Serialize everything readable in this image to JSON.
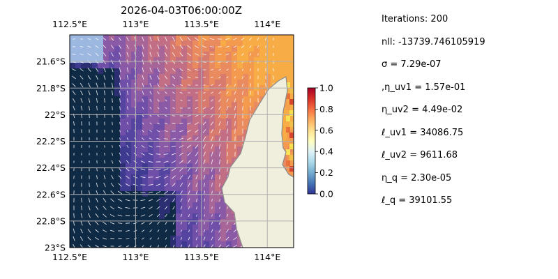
{
  "chart_data": {
    "type": "heatmap",
    "title": "2026-04-03T06:00:00Z",
    "x_ticks": [
      "112.5°E",
      "113°E",
      "113.5°E",
      "114°E"
    ],
    "x_tick_values": [
      112.5,
      113.0,
      113.5,
      114.0
    ],
    "y_ticks": [
      "21.6°S",
      "21.8°S",
      "22°S",
      "22.2°S",
      "22.4°S",
      "22.6°S",
      "22.8°S",
      "23°S"
    ],
    "y_tick_values": [
      -21.6,
      -21.8,
      -22.0,
      -22.2,
      -22.4,
      -22.6,
      -22.8,
      -23.0
    ],
    "xlim": [
      112.5,
      114.2
    ],
    "ylim": [
      -23.0,
      -21.4
    ],
    "grid": true,
    "colorbar": {
      "range": [
        0.0,
        1.0
      ],
      "ticks": [
        "0.0",
        "0.2",
        "0.4",
        "0.6",
        "0.8",
        "1.0"
      ],
      "tick_values": [
        0.0,
        0.2,
        0.4,
        0.6,
        0.8,
        1.0
      ],
      "colormap": "RdYlBu_r"
    },
    "colors": {
      "land": "#f0eedc",
      "no_data": "#9db8e0",
      "coast": "#8c8c8c",
      "grid": "#b0b0b0",
      "arrow": "#ffffff"
    }
  },
  "params": [
    "Iterations: 200",
    "nll: -13739.746105919",
    "σ = 7.29e-07",
    ",η_uv1 = 1.57e-01",
    "η_uv2 = 4.49e-02",
    "ℓ_uv1 = 34086.75",
    "ℓ_uv2 = 9611.68",
    "η_q = 2.30e-05",
    "ℓ_q = 39101.55"
  ]
}
